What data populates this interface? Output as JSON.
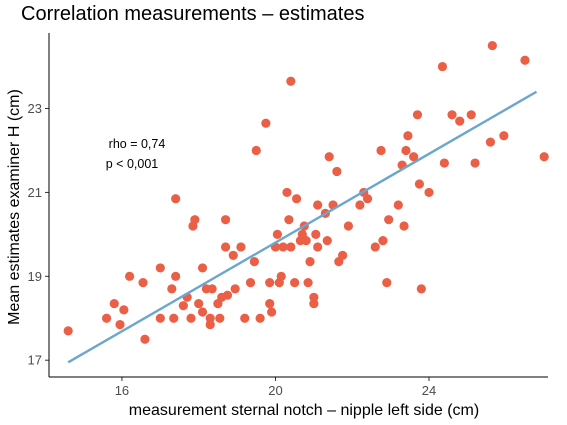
{
  "chart_data": {
    "type": "scatter",
    "title": "Correlation measurements – estimates",
    "xlabel": "measurement sternal notch – nipple left side (cm)",
    "ylabel": "Mean estimates examiner H (cm)",
    "xlim": [
      14.1,
      27.1
    ],
    "ylim": [
      16.6,
      24.8
    ],
    "xticks": [
      16,
      20,
      24
    ],
    "yticks": [
      17,
      19,
      21,
      23
    ],
    "grid": false,
    "point_color": "#ea5f45",
    "line_color": "#6ba6cf",
    "fit_line": {
      "x": [
        14.6,
        26.8
      ],
      "y": [
        16.95,
        23.4
      ]
    },
    "annotations": [
      "rho = 0,74",
      "p < 0,001"
    ],
    "points": [
      [
        14.6,
        17.7
      ],
      [
        15.6,
        18.0
      ],
      [
        15.8,
        18.35
      ],
      [
        15.95,
        17.85
      ],
      [
        16.05,
        18.2
      ],
      [
        16.2,
        19.0
      ],
      [
        16.55,
        18.85
      ],
      [
        16.6,
        17.5
      ],
      [
        17.0,
        19.2
      ],
      [
        17.0,
        18.0
      ],
      [
        17.3,
        18.7
      ],
      [
        17.35,
        18.0
      ],
      [
        17.4,
        19.0
      ],
      [
        17.4,
        20.85
      ],
      [
        17.6,
        18.3
      ],
      [
        17.7,
        18.5
      ],
      [
        17.8,
        18.0
      ],
      [
        17.85,
        20.2
      ],
      [
        17.9,
        20.35
      ],
      [
        18.0,
        18.35
      ],
      [
        18.1,
        19.2
      ],
      [
        18.1,
        18.15
      ],
      [
        18.2,
        18.7
      ],
      [
        18.3,
        18.0
      ],
      [
        18.3,
        17.85
      ],
      [
        18.35,
        18.7
      ],
      [
        18.5,
        18.35
      ],
      [
        18.55,
        18.0
      ],
      [
        18.6,
        18.5
      ],
      [
        18.7,
        20.35
      ],
      [
        18.7,
        19.7
      ],
      [
        18.75,
        18.55
      ],
      [
        18.9,
        19.5
      ],
      [
        18.95,
        18.7
      ],
      [
        19.1,
        19.7
      ],
      [
        19.2,
        18.0
      ],
      [
        19.35,
        18.85
      ],
      [
        19.45,
        19.35
      ],
      [
        19.5,
        22.0
      ],
      [
        19.6,
        18.0
      ],
      [
        19.75,
        22.65
      ],
      [
        19.85,
        18.35
      ],
      [
        19.85,
        18.85
      ],
      [
        19.9,
        18.15
      ],
      [
        20.0,
        19.7
      ],
      [
        20.05,
        20.0
      ],
      [
        20.1,
        18.85
      ],
      [
        20.15,
        19.0
      ],
      [
        20.2,
        19.7
      ],
      [
        20.3,
        21.0
      ],
      [
        20.35,
        20.35
      ],
      [
        20.4,
        23.65
      ],
      [
        20.4,
        19.7
      ],
      [
        20.5,
        18.85
      ],
      [
        20.55,
        20.85
      ],
      [
        20.65,
        19.85
      ],
      [
        20.7,
        20.0
      ],
      [
        20.75,
        20.2
      ],
      [
        20.8,
        19.85
      ],
      [
        20.85,
        18.85
      ],
      [
        20.9,
        19.35
      ],
      [
        21.0,
        18.35
      ],
      [
        21.0,
        18.5
      ],
      [
        21.05,
        20.0
      ],
      [
        21.1,
        19.7
      ],
      [
        21.1,
        20.7
      ],
      [
        21.3,
        20.5
      ],
      [
        21.35,
        19.85
      ],
      [
        21.4,
        21.85
      ],
      [
        21.5,
        20.7
      ],
      [
        21.6,
        21.5
      ],
      [
        21.65,
        19.35
      ],
      [
        21.75,
        19.5
      ],
      [
        21.9,
        20.2
      ],
      [
        22.2,
        20.7
      ],
      [
        22.3,
        21.0
      ],
      [
        22.4,
        20.85
      ],
      [
        22.6,
        19.7
      ],
      [
        22.75,
        22.0
      ],
      [
        22.8,
        19.85
      ],
      [
        22.9,
        18.85
      ],
      [
        22.95,
        20.35
      ],
      [
        23.2,
        20.7
      ],
      [
        23.3,
        21.65
      ],
      [
        23.35,
        20.2
      ],
      [
        23.4,
        22.0
      ],
      [
        23.45,
        22.35
      ],
      [
        23.6,
        21.85
      ],
      [
        23.7,
        22.85
      ],
      [
        23.75,
        21.2
      ],
      [
        23.8,
        18.7
      ],
      [
        24.0,
        21.0
      ],
      [
        24.35,
        24.0
      ],
      [
        24.4,
        21.7
      ],
      [
        24.6,
        22.85
      ],
      [
        24.8,
        22.7
      ],
      [
        25.1,
        22.85
      ],
      [
        25.2,
        21.7
      ],
      [
        25.6,
        22.2
      ],
      [
        25.65,
        24.5
      ],
      [
        25.95,
        22.35
      ],
      [
        26.5,
        24.15
      ],
      [
        27.0,
        21.85
      ]
    ]
  }
}
